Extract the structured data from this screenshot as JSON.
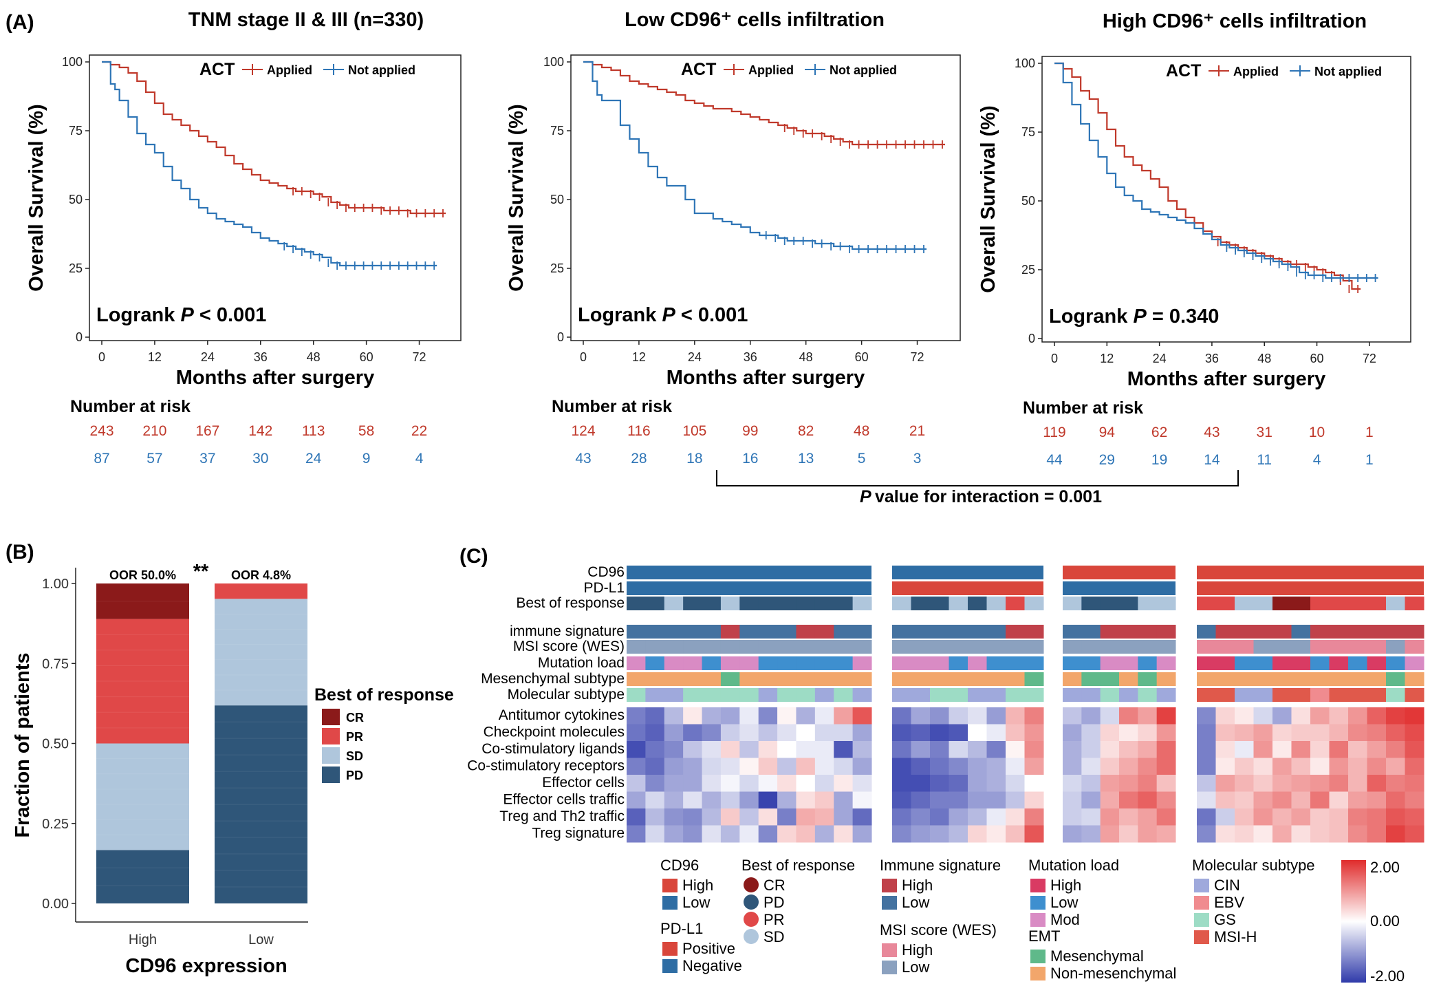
{
  "panel_labels": {
    "A": "(A)",
    "B": "(B)",
    "C": "(C)"
  },
  "colors": {
    "applied": "#c0392b",
    "not_applied": "#2e75b6",
    "CR": "#8b1a1a",
    "PR": "#e04848",
    "SD": "#afc6dc",
    "PD": "#2f5679"
  },
  "km_common": {
    "ylabel": "Overall Survival (%)",
    "xlabel": "Months after surgery",
    "legend_title": "ACT",
    "legend_applied": "Applied",
    "legend_not_applied": "Not applied",
    "risk_header": "Number at risk",
    "x_ticks": [
      "0",
      "12",
      "24",
      "36",
      "48",
      "60",
      "72"
    ],
    "y_ticks": [
      "0",
      "25",
      "50",
      "75",
      "100"
    ]
  },
  "km_panels": [
    {
      "title": "TNM stage II & III (n=330)",
      "logrank_prefix": "Logrank",
      "logrank_p": "P",
      "logrank_value": "< 0.001",
      "risk_applied": [
        "243",
        "210",
        "167",
        "142",
        "113",
        "58",
        "22"
      ],
      "risk_not_applied": [
        "87",
        "57",
        "37",
        "30",
        "24",
        "9",
        "4"
      ]
    },
    {
      "title": "Low CD96⁺ cells infiltration",
      "logrank_prefix": "Logrank",
      "logrank_p": "P",
      "logrank_value": " < 0.001",
      "risk_applied": [
        "124",
        "116",
        "105",
        "99",
        "82",
        "48",
        "21"
      ],
      "risk_not_applied": [
        "43",
        "28",
        "18",
        "16",
        "13",
        "5",
        "3"
      ]
    },
    {
      "title": "High CD96⁺ cells infiltration",
      "logrank_prefix": "Logrank",
      "logrank_p": "P",
      "logrank_value": " = 0.340",
      "risk_applied": [
        "119",
        "94",
        "62",
        "43",
        "31",
        "10",
        "1"
      ],
      "risk_not_applied": [
        "44",
        "29",
        "19",
        "14",
        "11",
        "4",
        "1"
      ]
    }
  ],
  "interaction": {
    "p": "P",
    "text": "value for interaction = 0.001"
  },
  "chart_data": [
    {
      "type": "line",
      "title": "TNM stage II & III (n=330)",
      "xlabel": "Months after surgery",
      "ylabel": "Overall Survival (%)",
      "xlim": [
        0,
        78
      ],
      "ylim": [
        0,
        100
      ],
      "series": [
        {
          "name": "Applied",
          "x": [
            0,
            2,
            4,
            6,
            8,
            10,
            12,
            14,
            16,
            18,
            20,
            22,
            24,
            26,
            28,
            30,
            32,
            34,
            36,
            38,
            40,
            42,
            44,
            46,
            48,
            50,
            52,
            54,
            56,
            58,
            60,
            62,
            64,
            66,
            68,
            70,
            72,
            74,
            76,
            78
          ],
          "y": [
            100,
            99,
            98,
            96,
            93,
            89,
            85,
            81,
            79,
            77,
            75,
            73,
            71,
            69,
            66,
            63,
            61,
            59,
            57,
            56,
            55,
            54,
            53,
            53,
            52,
            51,
            49,
            48,
            47,
            47,
            47,
            47,
            46,
            46,
            46,
            45,
            45,
            45,
            45,
            45
          ]
        },
        {
          "name": "Not applied",
          "x": [
            0,
            2,
            3,
            4,
            6,
            8,
            10,
            12,
            14,
            16,
            18,
            20,
            22,
            24,
            26,
            28,
            30,
            32,
            34,
            36,
            38,
            40,
            42,
            44,
            46,
            48,
            50,
            52,
            54,
            56,
            58,
            60,
            62,
            64,
            66,
            68,
            70,
            72,
            74,
            76
          ],
          "y": [
            100,
            92,
            90,
            86,
            80,
            74,
            70,
            67,
            62,
            57,
            54,
            50,
            47,
            45,
            43,
            42,
            41,
            40,
            38,
            36,
            35,
            34,
            33,
            32,
            31,
            30,
            29,
            27,
            26,
            26,
            26,
            26,
            26,
            26,
            26,
            26,
            26,
            26,
            26,
            26
          ]
        }
      ]
    },
    {
      "type": "line",
      "title": "Low CD96⁺ cells infiltration",
      "xlabel": "Months after surgery",
      "ylabel": "Overall Survival (%)",
      "xlim": [
        0,
        78
      ],
      "ylim": [
        0,
        100
      ],
      "series": [
        {
          "name": "Applied",
          "x": [
            0,
            2,
            4,
            6,
            8,
            10,
            12,
            14,
            16,
            18,
            20,
            22,
            24,
            26,
            28,
            30,
            32,
            34,
            36,
            38,
            40,
            42,
            44,
            46,
            48,
            50,
            52,
            54,
            56,
            58,
            60,
            62,
            64,
            66,
            68,
            70,
            72,
            74,
            76,
            78
          ],
          "y": [
            100,
            99,
            98,
            97,
            95,
            93,
            92,
            91,
            90,
            89,
            88,
            86,
            85,
            84,
            83,
            83,
            82,
            81,
            80,
            79,
            78,
            77,
            76,
            75,
            74,
            74,
            73,
            72,
            71,
            70,
            70,
            70,
            70,
            70,
            70,
            70,
            70,
            70,
            70,
            70
          ]
        },
        {
          "name": "Not applied",
          "x": [
            0,
            2,
            3,
            4,
            6,
            8,
            10,
            12,
            14,
            16,
            18,
            20,
            22,
            24,
            26,
            28,
            30,
            32,
            34,
            36,
            38,
            40,
            42,
            44,
            46,
            48,
            50,
            52,
            54,
            56,
            58,
            60,
            62,
            64,
            66,
            68,
            70,
            72,
            74
          ],
          "y": [
            100,
            93,
            88,
            86,
            86,
            77,
            72,
            67,
            62,
            58,
            55,
            55,
            50,
            45,
            45,
            43,
            42,
            41,
            40,
            38,
            37,
            37,
            36,
            35,
            35,
            35,
            34,
            34,
            33,
            33,
            32,
            32,
            32,
            32,
            32,
            32,
            32,
            32,
            32
          ]
        }
      ]
    },
    {
      "type": "line",
      "title": "High CD96⁺ cells infiltration",
      "xlabel": "Months after surgery",
      "ylabel": "Overall Survival (%)",
      "xlim": [
        0,
        78
      ],
      "ylim": [
        0,
        100
      ],
      "series": [
        {
          "name": "Applied",
          "x": [
            0,
            2,
            4,
            6,
            8,
            10,
            12,
            14,
            16,
            18,
            20,
            22,
            24,
            26,
            28,
            30,
            32,
            34,
            36,
            38,
            40,
            42,
            44,
            46,
            48,
            50,
            52,
            54,
            56,
            58,
            60,
            62,
            64,
            66,
            68,
            70
          ],
          "y": [
            100,
            98,
            95,
            90,
            87,
            82,
            76,
            70,
            66,
            63,
            61,
            58,
            55,
            50,
            47,
            44,
            42,
            39,
            37,
            35,
            34,
            33,
            32,
            31,
            30,
            29,
            28,
            27,
            27,
            26,
            25,
            24,
            23,
            21,
            18,
            18
          ]
        },
        {
          "name": "Not applied",
          "x": [
            0,
            2,
            4,
            6,
            8,
            10,
            12,
            14,
            16,
            18,
            20,
            22,
            24,
            26,
            28,
            30,
            32,
            34,
            36,
            38,
            40,
            42,
            44,
            46,
            48,
            50,
            52,
            54,
            56,
            58,
            60,
            62,
            64,
            66,
            68,
            70,
            72,
            74
          ],
          "y": [
            100,
            93,
            85,
            78,
            72,
            66,
            60,
            55,
            52,
            50,
            47,
            46,
            45,
            44,
            43,
            42,
            40,
            38,
            36,
            34,
            33,
            32,
            31,
            30,
            29,
            28,
            27,
            26,
            24,
            23,
            23,
            22,
            22,
            22,
            22,
            22,
            22,
            22
          ]
        }
      ]
    },
    {
      "type": "bar",
      "stacked": true,
      "xlabel": "CD96 expression",
      "ylabel": "Fraction of patients",
      "ylim": [
        0,
        1
      ],
      "categories": [
        "High",
        "Low"
      ],
      "annotations": [
        "OOR 50.0%",
        "OOR 4.8%"
      ],
      "significance": "**",
      "legend_title": "Best of response",
      "series": [
        {
          "name": "PD",
          "values": [
            0.167,
            0.619
          ]
        },
        {
          "name": "SD",
          "values": [
            0.333,
            0.333
          ]
        },
        {
          "name": "PR",
          "values": [
            0.389,
            0.048
          ]
        },
        {
          "name": "CR",
          "values": [
            0.111,
            0.0
          ]
        }
      ],
      "y_ticks": [
        "0.00",
        "0.25",
        "0.50",
        "0.75",
        "1.00"
      ]
    },
    {
      "type": "heatmap",
      "annotation_rows": [
        "CD96",
        "PD-L1",
        "Best of response"
      ],
      "annotation_rows2": [
        "immune signature",
        "MSI score (WES)",
        "Mutation load",
        "Mesenchymal subtype",
        "Molecular subtype"
      ],
      "rows": [
        "Antitumor cytokines",
        "Checkpoint molecules",
        "Co-stimulatory ligands",
        "Co-stimulatory receptors",
        "Effector cells",
        "Effector cells traffic",
        "Treg and Th2 traffic",
        "Treg signature"
      ],
      "color_scale": {
        "min": "-2.00",
        "mid": "0.00",
        "max": "2.00"
      }
    }
  ],
  "heatmap_legend": {
    "cd96": {
      "title": "CD96",
      "items": [
        "High",
        "Low"
      ],
      "colors": [
        "#d9463b",
        "#2e6da4"
      ]
    },
    "pdl1": {
      "title": "PD-L1",
      "items": [
        "Positive",
        "Negative"
      ],
      "colors": [
        "#d9463b",
        "#2e6da4"
      ]
    },
    "bor": {
      "title": "Best of response",
      "items": [
        "CR",
        "PD",
        "PR",
        "SD"
      ],
      "colors": [
        "#8b1a1a",
        "#2f5679",
        "#e04848",
        "#afc6dc"
      ]
    },
    "immune": {
      "title": "Immune signature",
      "items": [
        "High",
        "Low"
      ],
      "colors": [
        "#c0414a",
        "#4472a0"
      ]
    },
    "msi": {
      "title": "MSI score (WES)",
      "items": [
        "High",
        "Low"
      ],
      "colors": [
        "#e8889a",
        "#8ba1bf"
      ]
    },
    "mutation": {
      "title": "Mutation load",
      "items": [
        "High",
        "Low",
        "Mod"
      ],
      "colors": [
        "#d93b63",
        "#3e8fcf",
        "#d98bc4"
      ]
    },
    "emt": {
      "title": "EMT",
      "items": [
        "Mesenchymal",
        "Non-mesenchymal"
      ],
      "colors": [
        "#5fb98a",
        "#f2a66b"
      ]
    },
    "molecular": {
      "title": "Molecular subtype",
      "items": [
        "CIN",
        "EBV",
        "GS",
        "MSI-H"
      ],
      "colors": [
        "#9fa9dc",
        "#f08b8f",
        "#9ddcc5",
        "#e0594b"
      ]
    }
  }
}
